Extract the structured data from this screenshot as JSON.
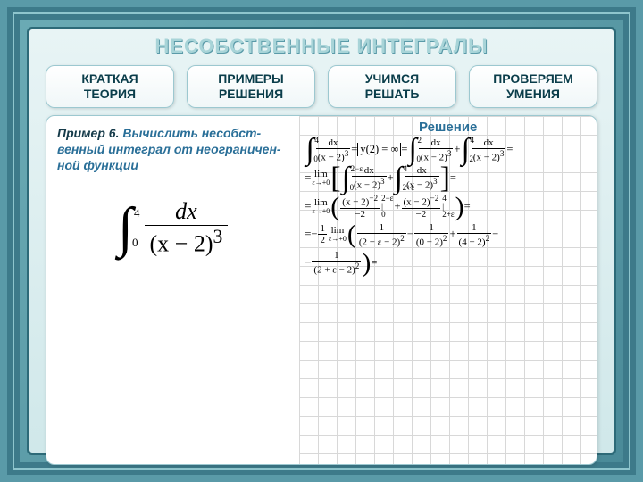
{
  "title": "НЕСОБСТВЕННЫЕ ИНТЕГРАЛЫ",
  "tabs": [
    {
      "l1": "КРАТКАЯ",
      "l2": "ТЕОРИЯ"
    },
    {
      "l1": "ПРИМЕРЫ",
      "l2": "РЕШЕНИЯ"
    },
    {
      "l1": "УЧИМСЯ",
      "l2": "РЕШАТЬ"
    },
    {
      "l1": "ПРОВЕРЯЕМ",
      "l2": "УМЕНИЯ"
    }
  ],
  "problem": {
    "header": "Пример 6.",
    "line1": "Вычислить несобст-",
    "line2": "венный интеграл от неограничен-",
    "line3": "ной",
    "line3b": "функции"
  },
  "big_integral": {
    "upper": "4",
    "lower": "0",
    "num": "dx",
    "den": "(x − 2)",
    "den_exp": "3"
  },
  "solution_title": "Решение",
  "frag": {
    "dx": "dx",
    "xm2_3": "(x − 2)",
    "xm2_2": "(x − 2)",
    "y2inf": "y(2) = ∞",
    "lim": "lim",
    "eps0": "ε→+0",
    "minus2": "−2",
    "m1over2": "1",
    "two": "2",
    "eq": "=",
    "plus": "+",
    "one": "1",
    "expr2me": "(2 − ε − 2)",
    "expr0m2": "(0 − 2)",
    "expr4m2": "(4 − 2)",
    "expr2pe": "(2 + ε − 2)",
    "xm2m2": "(x − 2)",
    "b1": "2−ε",
    "b2": "0",
    "b3": "4",
    "b4": "2+ε",
    "minus": "−"
  },
  "colors": {
    "frame": "#3d7a8a",
    "bg": "#5a9aa8",
    "panel": "#ffffff",
    "title": "#a8d4d8",
    "text": "#2a6f98",
    "grid": "#d8d8d8"
  }
}
